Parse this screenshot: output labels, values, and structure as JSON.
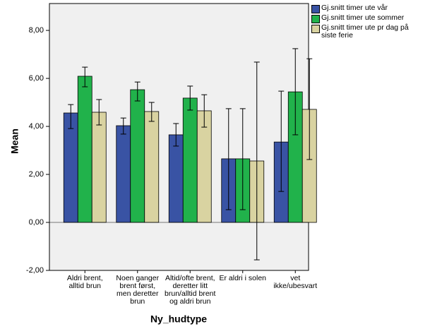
{
  "chart_data": {
    "type": "bar",
    "y_label": "Mean",
    "x_label": "Ny_hudtype",
    "categories": [
      "Aldri brent,\nalltid brun",
      "Noen ganger\nbrent først,\nmen deretter\nbrun",
      "Altid/ofte brent,\nderetter litt\nbrun/alltid brent\nog aldri brun",
      "Er aldri i solen",
      "vet\nikke/ubesvart"
    ],
    "series": [
      {
        "name": "Gj.snitt timer ute vår",
        "color": "#3953a4",
        "values": [
          4.56,
          4.03,
          3.65,
          2.65,
          3.35
        ],
        "lower": [
          3.91,
          3.68,
          3.18,
          0.53,
          1.29
        ],
        "upper": [
          4.91,
          4.35,
          4.12,
          4.74,
          5.47
        ]
      },
      {
        "name": "Gj.snitt timer ute sommer",
        "color": "#21b24b",
        "values": [
          6.09,
          5.53,
          5.18,
          2.65,
          5.44
        ],
        "lower": [
          5.65,
          5.06,
          4.68,
          0.53,
          3.65
        ],
        "upper": [
          6.47,
          5.85,
          5.68,
          4.74,
          7.24
        ]
      },
      {
        "name": "Gj.snitt timer ute pr dag på\nsiste ferie",
        "color": "#d9d3a1",
        "values": [
          4.59,
          4.62,
          4.65,
          2.56,
          4.71
        ],
        "lower": [
          4.06,
          4.21,
          3.97,
          -1.56,
          2.62
        ],
        "upper": [
          5.12,
          5.0,
          5.32,
          6.68,
          6.82
        ]
      }
    ],
    "ylim": [
      -2,
      9.12
    ],
    "yticks": [
      {
        "value": -2,
        "label": "-2,00"
      },
      {
        "value": 0,
        "label": "0,00"
      },
      {
        "value": 2,
        "label": "2,00"
      },
      {
        "value": 4,
        "label": "4,00"
      },
      {
        "value": 6,
        "label": "6,00"
      },
      {
        "value": 8,
        "label": "8,00"
      }
    ],
    "background": "#f0f0f0"
  }
}
